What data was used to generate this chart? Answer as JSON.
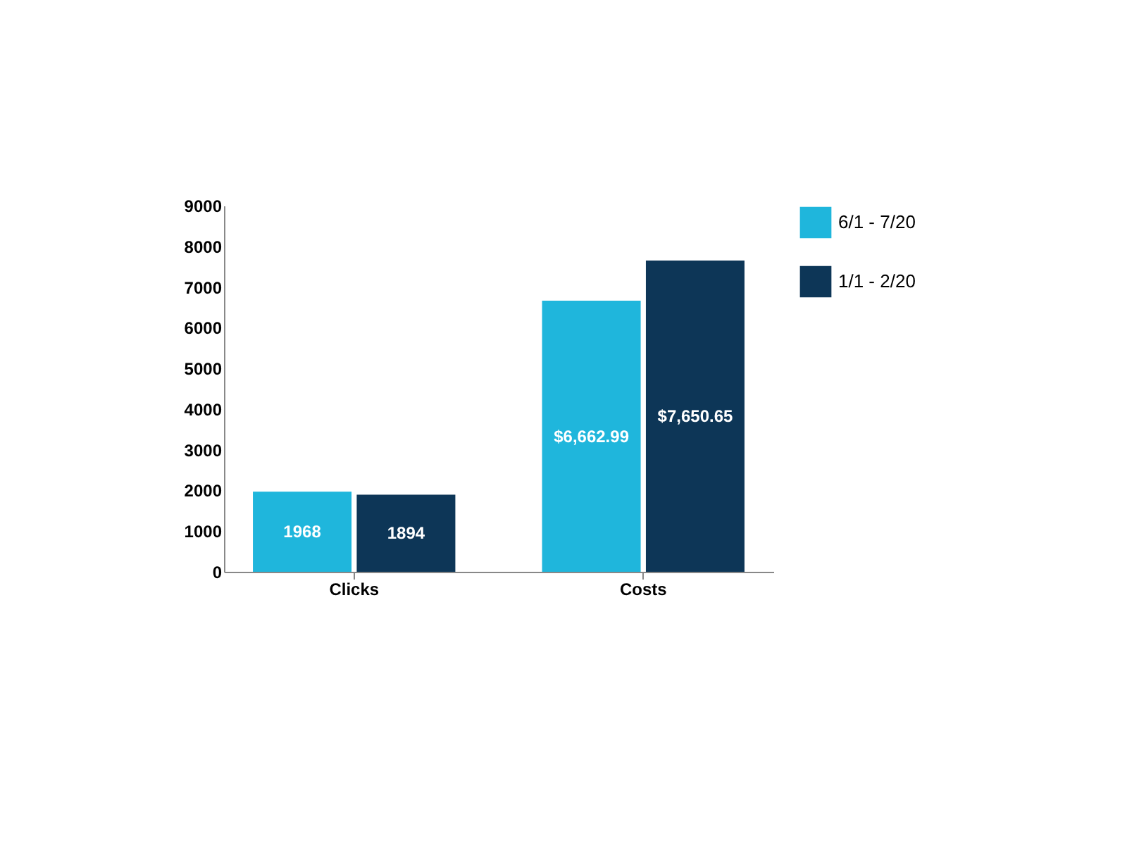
{
  "chart_data": {
    "type": "bar",
    "categories": [
      "Clicks",
      "Costs"
    ],
    "series": [
      {
        "name": "6/1 - 7/20",
        "color": "#1fb6dc",
        "values": [
          1968,
          6662.99
        ],
        "value_labels": [
          "1968",
          "$6,662.99"
        ]
      },
      {
        "name": "1/1 - 2/20",
        "color": "#0d3657",
        "values": [
          1894,
          7650.65
        ],
        "value_labels": [
          "1894",
          "$7,650.65"
        ]
      }
    ],
    "ylim": [
      0,
      9000
    ],
    "yticks": [
      0,
      1000,
      2000,
      3000,
      4000,
      5000,
      6000,
      7000,
      8000,
      9000
    ],
    "grid": false,
    "legend": "right"
  }
}
